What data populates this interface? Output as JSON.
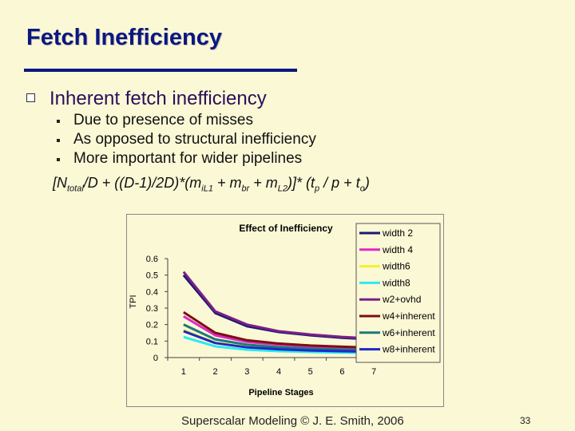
{
  "slide": {
    "title": "Fetch Inefficiency",
    "heading": "Inherent fetch inefficiency",
    "bullets": [
      "Due to presence of misses",
      "As opposed to structural inefficiency",
      "More important for wider pipelines"
    ],
    "formula": {
      "p1": "[N",
      "s1": "total",
      "p2": "/D + ((D-1)/2D)*(m",
      "s2": "iL1",
      "p3": " + m",
      "s3": "br",
      "p4": " + m",
      "s4": "L2",
      "p5": ")]* (t",
      "s5": "p",
      "p6": " / p + t",
      "s6": "o",
      "p7": ")"
    },
    "footer": "Superscalar Modeling © J. E. Smith, 2006",
    "page_number": "33"
  },
  "chart_data": {
    "type": "line",
    "title": "Effect of Inefficiency",
    "xlabel": "Pipeline Stages",
    "ylabel": "TPI",
    "x": [
      1,
      2,
      3,
      4,
      5,
      6,
      7
    ],
    "xlim": [
      0.5,
      7.5
    ],
    "ylim": [
      0,
      0.6
    ],
    "yticks": [
      0,
      0.1,
      0.2,
      0.3,
      0.4,
      0.5,
      0.6
    ],
    "grid": false,
    "legend_position": "right",
    "series": [
      {
        "name": "width 2",
        "color": "#1a1a72",
        "values": [
          0.5,
          0.27,
          0.19,
          0.155,
          0.135,
          0.12,
          0.11
        ]
      },
      {
        "name": "width 4",
        "color": "#e028c8",
        "values": [
          0.25,
          0.135,
          0.095,
          0.078,
          0.067,
          0.06,
          0.055
        ]
      },
      {
        "name": "width6",
        "color": "#f2f22c",
        "values": [
          0.167,
          0.09,
          0.065,
          0.052,
          0.045,
          0.04,
          0.036
        ]
      },
      {
        "name": "width8",
        "color": "#2ee8f0",
        "values": [
          0.125,
          0.068,
          0.048,
          0.039,
          0.034,
          0.03,
          0.027
        ]
      },
      {
        "name": "w2+ovhd",
        "color": "#7b2084",
        "values": [
          0.52,
          0.28,
          0.2,
          0.16,
          0.14,
          0.125,
          0.115
        ]
      },
      {
        "name": "w4+inherent",
        "color": "#7a1010",
        "values": [
          0.275,
          0.15,
          0.105,
          0.085,
          0.073,
          0.066,
          0.06
        ]
      },
      {
        "name": "w6+inherent",
        "color": "#1a7a7a",
        "values": [
          0.2,
          0.11,
          0.078,
          0.063,
          0.054,
          0.048,
          0.044
        ]
      },
      {
        "name": "w8+inherent",
        "color": "#1e28c8",
        "values": [
          0.16,
          0.088,
          0.062,
          0.05,
          0.043,
          0.039,
          0.035
        ]
      }
    ]
  }
}
